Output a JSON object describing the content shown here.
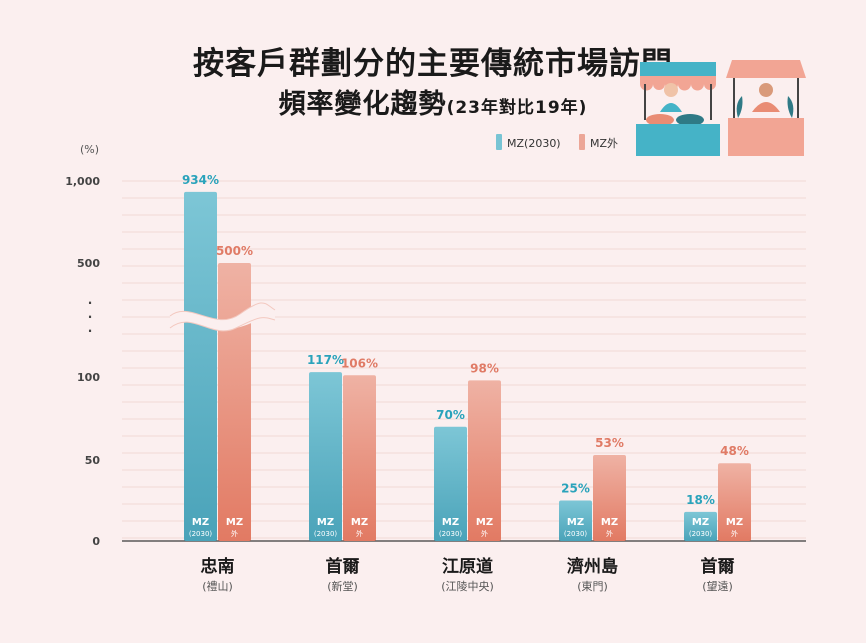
{
  "title_line1": "按客戶群劃分的主要傳統市場訪問",
  "title_line2_main": "頻率變化趨勢",
  "title_line2_sub": "(23年對比19年)",
  "colors": {
    "mz2030": "#78c4d4",
    "mz_out": "#eca697",
    "bg": "#fbefef"
  },
  "chart_data": {
    "type": "bar",
    "unit_label": "(%)",
    "y_ticks": [
      "1,000",
      "500",
      "100",
      "50",
      "0"
    ],
    "y_axis_break_marks": ".",
    "axis_break": true,
    "categories": [
      {
        "name": "忠南",
        "sub": "(禮山)"
      },
      {
        "name": "首爾",
        "sub": "(新堂)"
      },
      {
        "name": "江原道",
        "sub": "(江陵中央)"
      },
      {
        "name": "濟州島",
        "sub": "(東門)"
      },
      {
        "name": "首爾",
        "sub": "(望遠)"
      }
    ],
    "series": [
      {
        "name": "MZ(2030)",
        "bar_label_top": "MZ",
        "bar_label_bottom": "(2030)",
        "values": [
          934,
          117,
          70,
          25,
          18
        ],
        "labels": [
          "934%",
          "117%",
          "70%",
          "25%",
          "18%"
        ],
        "color": "#78c4d4"
      },
      {
        "name": "MZ外",
        "bar_label_top": "MZ",
        "bar_label_bottom": "外",
        "values": [
          500,
          106,
          98,
          53,
          48
        ],
        "labels": [
          "500%",
          "106%",
          "98%",
          "53%",
          "48%"
        ],
        "color": "#eca697"
      }
    ],
    "legend_position": "top-right",
    "grid": true
  }
}
